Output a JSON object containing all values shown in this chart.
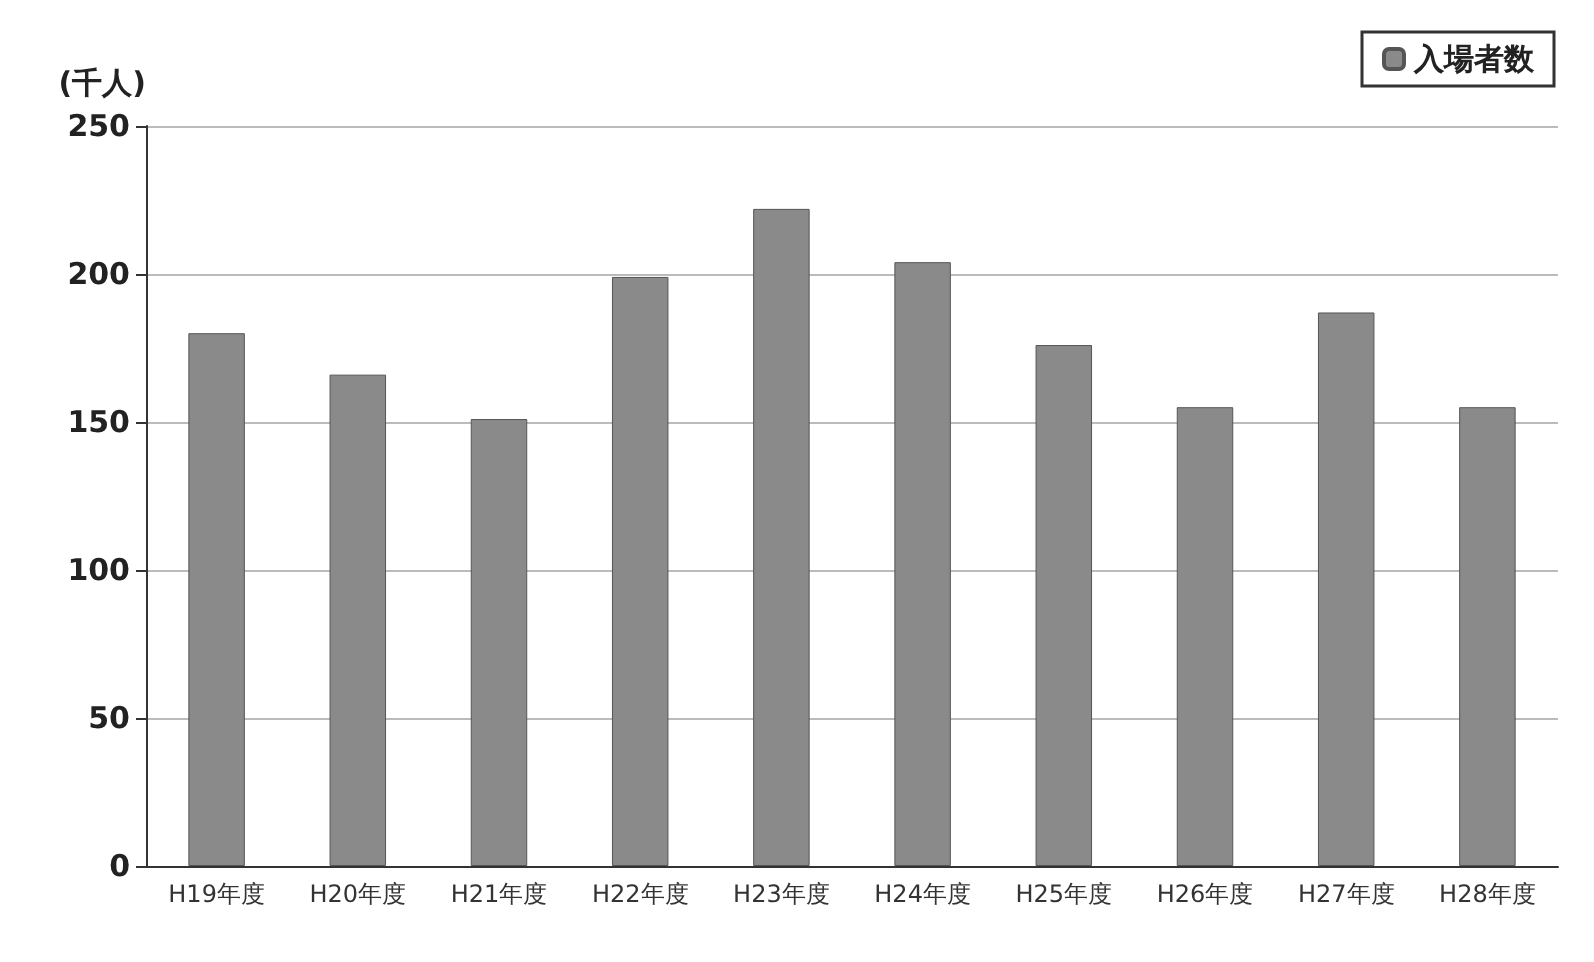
{
  "chart_data": {
    "type": "bar",
    "ylabel": "(千人)",
    "categories": [
      "H19年度",
      "H20年度",
      "H21年度",
      "H22年度",
      "H23年度",
      "H24年度",
      "H25年度",
      "H26年度",
      "H27年度",
      "H28年度"
    ],
    "series": [
      {
        "name": "入場者数",
        "color": "#8a8a8a",
        "values": [
          180,
          166,
          151,
          199,
          222,
          204,
          176,
          155,
          187,
          155
        ]
      }
    ],
    "ylim": [
      0,
      250
    ],
    "yticks": [
      0,
      50,
      100,
      150,
      200,
      250
    ],
    "grid": "y",
    "legend": "top right"
  }
}
